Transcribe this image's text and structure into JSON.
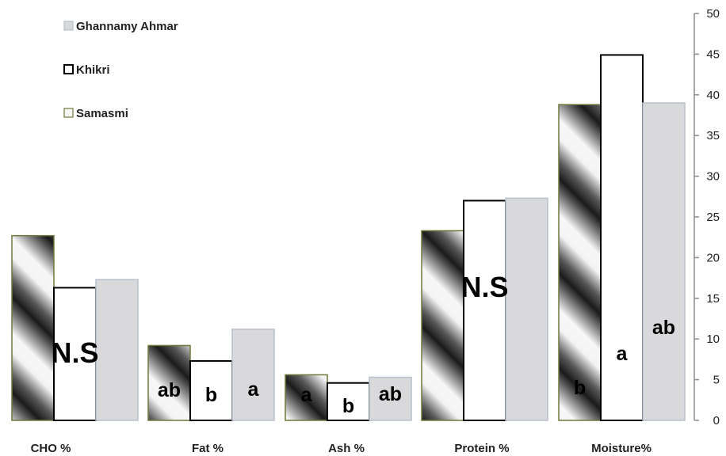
{
  "chart_data": {
    "type": "bar",
    "categories": [
      "CHO %",
      "Fat %",
      "Ash %",
      "Protein %",
      "Moisture%"
    ],
    "series": [
      {
        "name": "Samasmi",
        "values": [
          22.7,
          9.2,
          5.6,
          23.3,
          38.8
        ],
        "color": "#6b7a3a"
      },
      {
        "name": "Khikri",
        "values": [
          16.3,
          7.3,
          4.6,
          27.0,
          44.9
        ],
        "color": "#000000"
      },
      {
        "name": "Ghannamy Ahmar",
        "values": [
          17.3,
          11.2,
          5.3,
          27.3,
          39.0
        ],
        "color": "#d9d9dc"
      }
    ],
    "legend_order": [
      "Ghannamy Ahmar",
      "Khikri",
      "Samasmi"
    ],
    "legend_position": "top-left",
    "ylim": [
      0,
      50
    ],
    "yticks": [
      "0",
      "5",
      "10",
      "15",
      "20",
      "25",
      "30",
      "35",
      "40",
      "45",
      "50"
    ],
    "y_axis_side": "right",
    "grid": false,
    "annotations": [
      {
        "category": "CHO %",
        "text": "N.S"
      },
      {
        "category": "Fat %",
        "series": "Samasmi",
        "text": "ab"
      },
      {
        "category": "Fat %",
        "series": "Khikri",
        "text": "b"
      },
      {
        "category": "Fat %",
        "series": "Ghannamy Ahmar",
        "text": "a"
      },
      {
        "category": "Ash %",
        "series": "Samasmi",
        "text": "a"
      },
      {
        "category": "Ash %",
        "series": "Khikri",
        "text": "b"
      },
      {
        "category": "Ash %",
        "series": "Ghannamy Ahmar",
        "text": "ab"
      },
      {
        "category": "Protein %",
        "text": "N.S"
      },
      {
        "category": "Moisture%",
        "series": "Samasmi",
        "text": "b"
      },
      {
        "category": "Moisture%",
        "series": "Khikri",
        "text": "a"
      },
      {
        "category": "Moisture%",
        "series": "Ghannamy Ahmar",
        "text": "ab"
      }
    ]
  }
}
